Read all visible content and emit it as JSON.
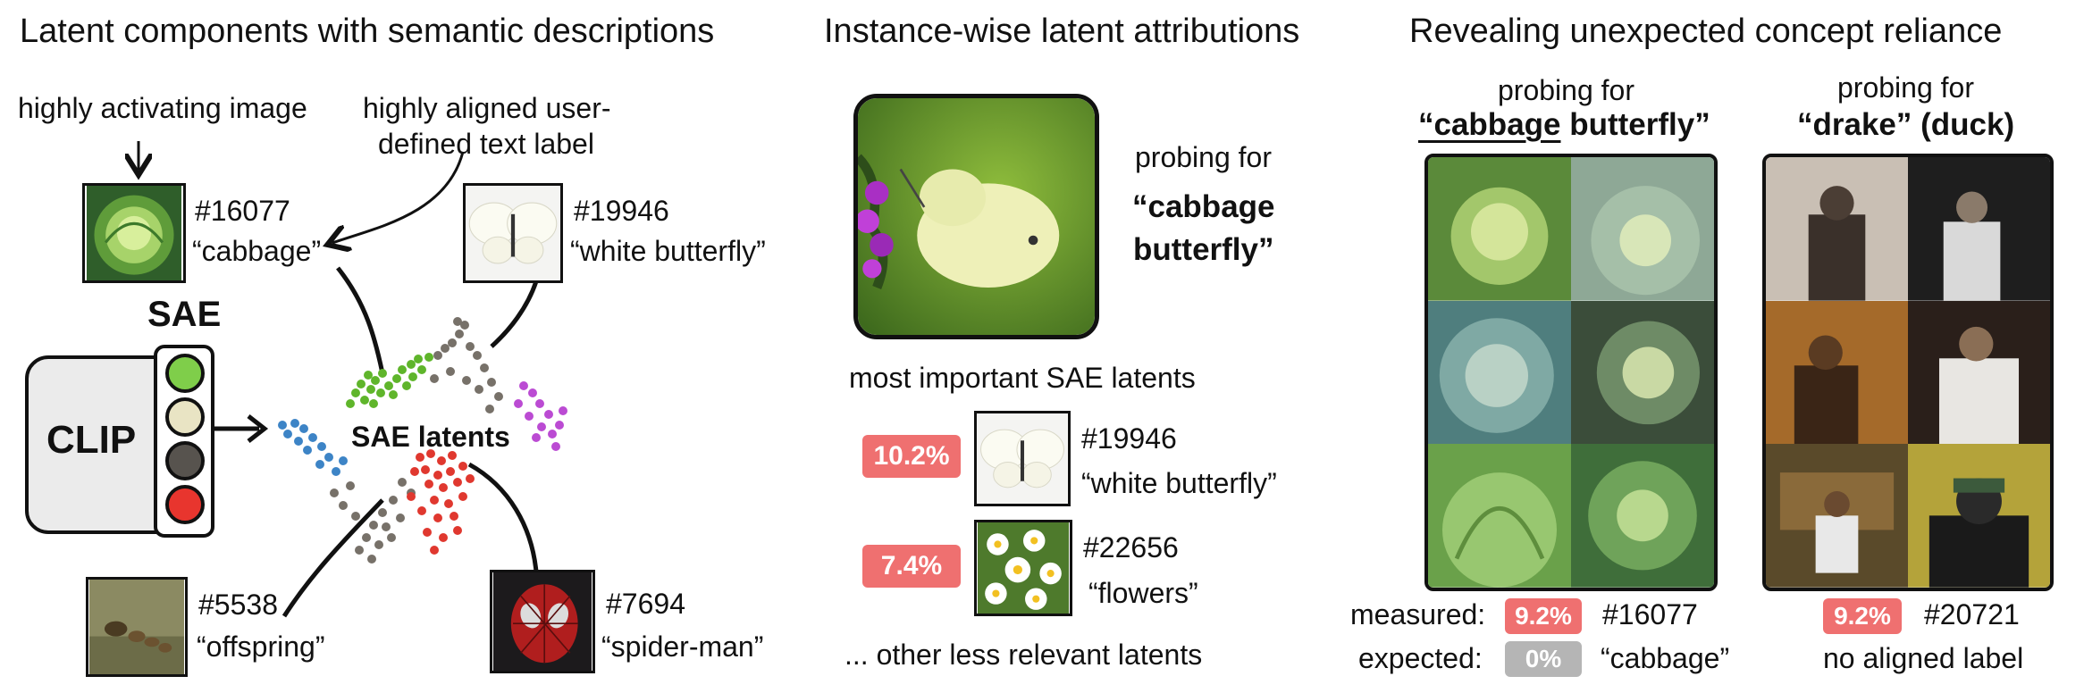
{
  "panel1": {
    "title": "Latent components with semantic descriptions",
    "annot_image": "highly activating image",
    "annot_text_1": "highly aligned user-",
    "annot_text_2": "defined text label",
    "sae_label": "SAE",
    "clip_label": "CLIP",
    "cluster_label": "SAE latents",
    "latents": [
      {
        "id": "#16077",
        "label": "“cabbage”"
      },
      {
        "id": "#19946",
        "label": "“white butterfly”"
      },
      {
        "id": "#5538",
        "label": "“offspring”"
      },
      {
        "id": "#7694",
        "label": "“spider-man”"
      }
    ],
    "sae_node_colors": [
      "#7fce4a",
      "#e9e4c4",
      "#57534e",
      "#e8352e"
    ]
  },
  "panel2": {
    "title": "Instance-wise latent attributions",
    "probe_intro": "probing for",
    "probe_1": "“cabbage",
    "probe_2": "butterfly”",
    "important_heading": "most important SAE latents",
    "rows": [
      {
        "pct": "10.2%",
        "id": "#19946",
        "label": "“white butterfly”"
      },
      {
        "pct": "7.4%",
        "id": "#22656",
        "label": "“flowers”"
      }
    ],
    "footer": "... other less relevant latents"
  },
  "panel3": {
    "title": "Revealing unexpected concept reliance",
    "left": {
      "probe_intro": "probing for",
      "probe_word_1": "“cabbage",
      "probe_word_2": " butterfly”",
      "measured_label": "measured:",
      "measured_pct": "9.2%",
      "measured_id": "#16077",
      "expected_label": "expected:",
      "expected_pct": "0%",
      "expected_text": "“cabbage”"
    },
    "right": {
      "probe_intro": "probing for",
      "probe": "“drake” (duck)",
      "measured_pct": "9.2%",
      "measured_id": "#20721",
      "note": "no aligned label"
    }
  },
  "colors": {
    "badge_red": "#ef7070",
    "badge_gray": "#b5b5b5",
    "green": "#5fb52b",
    "gray": "#777169",
    "blue": "#3d84c6",
    "purple": "#bb4bd3",
    "red": "#e0382f"
  }
}
